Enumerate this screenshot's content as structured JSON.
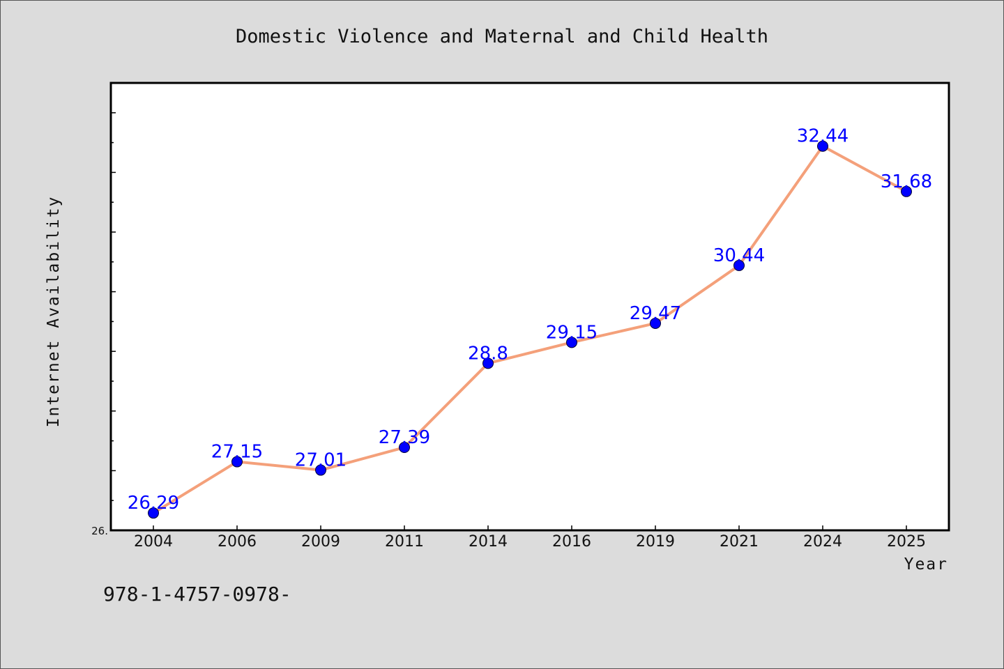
{
  "chart_data": {
    "type": "line",
    "title": "Domestic Violence and Maternal and Child Health",
    "xlabel": "Year",
    "ylabel": "Internet Availability",
    "categories": [
      "2004",
      "2006",
      "2009",
      "2011",
      "2014",
      "2016",
      "2019",
      "2021",
      "2024",
      "2025"
    ],
    "series": [
      {
        "values": [
          26.29,
          27.15,
          27.01,
          27.39,
          28.8,
          29.15,
          29.47,
          30.44,
          32.44,
          31.68
        ],
        "labels": [
          "26.29",
          "27.15",
          "27.01",
          "27.39",
          "28.8",
          "29.15",
          "29.47",
          "30.44",
          "32.44",
          "31.68"
        ]
      }
    ],
    "ylim": [
      26.0,
      33.5
    ],
    "y_min_label": "26.",
    "grid": false,
    "legend": "none",
    "colors": {
      "line": "#f4a07a",
      "marker": "#0000ff",
      "data_label": "#0000ff",
      "plot_background": "#ffffff",
      "page_background": "#dcdcdc"
    }
  },
  "footer": {
    "text": "978-1-4757-0978-"
  }
}
